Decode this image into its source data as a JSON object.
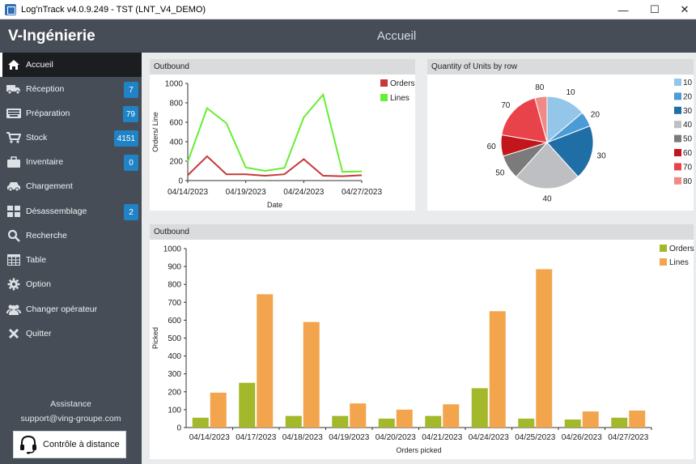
{
  "window": {
    "title": "Log'nTrack v4.0.9.249 - TST (LNT_V4_DEMO)",
    "minimize": "—",
    "maximize": "☐",
    "close": "✕"
  },
  "header": {
    "brand": "V-Ingénierie",
    "page_title": "Accueil"
  },
  "sidebar": {
    "items": [
      {
        "label": "Accueil",
        "icon": "home-icon",
        "badge": ""
      },
      {
        "label": "Réception",
        "icon": "truck-icon",
        "badge": "7"
      },
      {
        "label": "Préparation",
        "icon": "keyboard-icon",
        "badge": "79"
      },
      {
        "label": "Stock",
        "icon": "cart-icon",
        "badge": "4151"
      },
      {
        "label": "Inventaire",
        "icon": "briefcase-icon",
        "badge": "0"
      },
      {
        "label": "Chargement",
        "icon": "car-icon",
        "badge": ""
      },
      {
        "label": "Désassemblage",
        "icon": "tiles-icon",
        "badge": "2"
      },
      {
        "label": "Recherche",
        "icon": "search-icon",
        "badge": ""
      },
      {
        "label": "Table",
        "icon": "table-icon",
        "badge": ""
      },
      {
        "label": "Option",
        "icon": "gear-icon",
        "badge": ""
      },
      {
        "label": "Changer opérateur",
        "icon": "users-icon",
        "badge": ""
      },
      {
        "label": "Quitter",
        "icon": "close-icon",
        "badge": ""
      }
    ],
    "assist_title": "Assistance",
    "assist_email": "support@ving-groupe.com",
    "remote_button": "Contrôle à distance"
  },
  "panels": {
    "line_title": "Outbound",
    "pie_title": "Quantity of Units by row",
    "bar_title": "Outbound"
  },
  "chart_data": [
    {
      "type": "line",
      "title": "Outbound",
      "xlabel": "Date",
      "ylabel": "Orders/ Line",
      "ylim": [
        0,
        1000
      ],
      "yticks": [
        0,
        200,
        400,
        600,
        800,
        1000
      ],
      "x": [
        "04/14/2023",
        "04/17/2023",
        "04/18/2023",
        "04/19/2023",
        "04/20/2023",
        "04/21/2023",
        "04/24/2023",
        "04/25/2023",
        "04/26/2023",
        "04/27/2023"
      ],
      "xtick_labels": [
        "04/14/2023",
        "04/19/2023",
        "04/24/2023",
        "04/27/2023"
      ],
      "series": [
        {
          "name": "Orders",
          "color": "#c8383a",
          "values": [
            55,
            250,
            65,
            65,
            50,
            65,
            220,
            50,
            45,
            55
          ]
        },
        {
          "name": "Lines",
          "color": "#66ee33",
          "values": [
            195,
            745,
            590,
            135,
            100,
            130,
            650,
            885,
            90,
            95
          ]
        }
      ],
      "legend": "top-right"
    },
    {
      "type": "pie",
      "title": "Quantity of Units by row",
      "slices": [
        {
          "label": "10",
          "value": 13,
          "color": "#94c6ea"
        },
        {
          "label": "20",
          "value": 5,
          "color": "#4a9bd6"
        },
        {
          "label": "30",
          "value": 18,
          "color": "#1f6ea6"
        },
        {
          "label": "40",
          "value": 22,
          "color": "#bdbfc3"
        },
        {
          "label": "50",
          "value": 8,
          "color": "#7b7b7b"
        },
        {
          "label": "60",
          "value": 7,
          "color": "#c3161c"
        },
        {
          "label": "70",
          "value": 17,
          "color": "#e8434b"
        },
        {
          "label": "80",
          "value": 4,
          "color": "#f08a86"
        }
      ],
      "legend": "right"
    },
    {
      "type": "bar",
      "title": "Outbound",
      "xlabel": "Orders picked",
      "ylabel": "Picked",
      "ylim": [
        0,
        1000
      ],
      "yticks": [
        0,
        100,
        200,
        300,
        400,
        500,
        600,
        700,
        800,
        900,
        1000
      ],
      "categories": [
        "04/14/2023",
        "04/17/2023",
        "04/18/2023",
        "04/19/2023",
        "04/20/2023",
        "04/21/2023",
        "04/24/2023",
        "04/25/2023",
        "04/26/2023",
        "04/27/2023"
      ],
      "series": [
        {
          "name": "Orders",
          "color": "#a3b82a",
          "values": [
            55,
            250,
            65,
            65,
            50,
            65,
            220,
            50,
            45,
            55
          ]
        },
        {
          "name": "Lines",
          "color": "#f2a54c",
          "values": [
            195,
            745,
            590,
            135,
            100,
            130,
            650,
            885,
            90,
            95
          ]
        }
      ],
      "legend": "top-right"
    }
  ]
}
